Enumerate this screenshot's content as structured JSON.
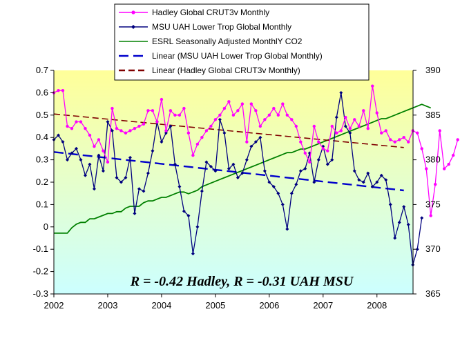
{
  "chart_data": {
    "type": "line",
    "x_axis": {
      "min": 2002,
      "max": 2008.67,
      "ticks": [
        2002,
        2003,
        2004,
        2005,
        2006,
        2007,
        2008
      ]
    },
    "y_left": {
      "min": -0.3,
      "max": 0.7,
      "ticks": [
        0.7,
        0.6,
        0.5,
        0.4,
        0.3,
        0.2,
        0.1,
        0,
        -0.1,
        -0.2,
        -0.3
      ],
      "tick_labels": [
        "0.7",
        "0.6",
        "0.5",
        "0.4",
        "0.3",
        "0.2",
        "0.1",
        "0",
        "-0.1",
        "-0.2",
        "-0.3"
      ]
    },
    "y_right": {
      "min": 365,
      "max": 390,
      "ticks": [
        390,
        385,
        380,
        375,
        370,
        365
      ],
      "tick_labels": [
        "390",
        "385",
        "380",
        "375",
        "370",
        "365"
      ]
    },
    "grid": false,
    "background": {
      "gradient_top": "#ffff99",
      "gradient_bottom": "#ccffff"
    },
    "annotation": "R = -0.42 Hadley,  R = -0.31 UAH MSU",
    "legend_position": "top-center",
    "series": [
      {
        "name": "Hadley Global CRUT3v Monthly",
        "axis": "left",
        "color": "#ff00ff",
        "marker": "circle",
        "style": "solid",
        "x_start": 2002.0,
        "x_step": 0.08333,
        "values": [
          0.6,
          0.61,
          0.61,
          0.45,
          0.44,
          0.47,
          0.47,
          0.44,
          0.41,
          0.36,
          0.39,
          0.34,
          0.29,
          0.53,
          0.44,
          0.43,
          0.42,
          0.43,
          0.44,
          0.45,
          0.46,
          0.52,
          0.52,
          0.47,
          0.57,
          0.43,
          0.52,
          0.5,
          0.5,
          0.53,
          0.42,
          0.32,
          0.37,
          0.4,
          0.43,
          0.45,
          0.48,
          0.5,
          0.53,
          0.56,
          0.5,
          0.52,
          0.55,
          0.38,
          0.55,
          0.52,
          0.45,
          0.48,
          0.5,
          0.53,
          0.5,
          0.55,
          0.5,
          0.48,
          0.45,
          0.38,
          0.33,
          0.29,
          0.45,
          0.38,
          0.35,
          0.34,
          0.45,
          0.42,
          0.43,
          0.49,
          0.44,
          0.48,
          0.45,
          0.52,
          0.44,
          0.63,
          0.51,
          0.42,
          0.43,
          0.39,
          0.38,
          0.39,
          0.4,
          0.38,
          0.43,
          0.42,
          0.35,
          0.26,
          0.05,
          0.19,
          0.43,
          0.26,
          0.28,
          0.32,
          0.39
        ]
      },
      {
        "name": "MSU UAH Lower Trop Global Monthly",
        "axis": "left",
        "color": "#00007f",
        "marker": "diamond",
        "style": "solid",
        "x_start": 2002.0,
        "x_step": 0.08333,
        "values": [
          0.39,
          0.41,
          0.38,
          0.3,
          0.33,
          0.35,
          0.3,
          0.23,
          0.28,
          0.17,
          0.32,
          0.25,
          0.47,
          0.43,
          0.22,
          0.2,
          0.22,
          0.31,
          0.06,
          0.17,
          0.16,
          0.24,
          0.34,
          0.47,
          0.38,
          0.42,
          0.45,
          0.28,
          0.18,
          0.07,
          0.05,
          -0.12,
          0.0,
          0.16,
          0.29,
          0.27,
          0.25,
          0.48,
          0.42,
          0.26,
          0.28,
          0.22,
          0.24,
          0.3,
          0.36,
          0.38,
          0.4,
          0.25,
          0.2,
          0.18,
          0.15,
          0.1,
          -0.01,
          0.15,
          0.19,
          0.25,
          0.26,
          0.33,
          0.2,
          0.3,
          0.36,
          0.28,
          0.3,
          0.49,
          0.6,
          0.45,
          0.42,
          0.25,
          0.21,
          0.2,
          0.24,
          0.18,
          0.2,
          0.23,
          0.21,
          0.1,
          -0.05,
          0.02,
          0.09,
          0.01,
          -0.17,
          -0.1,
          0.04
        ]
      },
      {
        "name": "ESRL Seasonally Adjusted MonthlY CO2",
        "axis": "right",
        "color": "#008000",
        "marker": "none",
        "style": "solid",
        "x_start": 2002.0,
        "x_step": 0.08333,
        "values": [
          371.8,
          371.8,
          371.8,
          371.8,
          372.4,
          372.8,
          373.0,
          373.0,
          373.4,
          373.4,
          373.6,
          373.8,
          374.0,
          374.0,
          374.2,
          374.2,
          374.6,
          374.8,
          374.8,
          374.8,
          375.2,
          375.4,
          375.4,
          375.6,
          375.8,
          375.8,
          376.0,
          376.2,
          376.4,
          376.4,
          376.2,
          376.4,
          376.6,
          377.0,
          377.2,
          377.4,
          377.6,
          377.8,
          378.0,
          378.2,
          378.4,
          378.6,
          378.8,
          379.0,
          379.2,
          379.4,
          379.6,
          379.8,
          380.0,
          380.2,
          380.4,
          380.6,
          380.8,
          380.8,
          381.0,
          381.2,
          381.2,
          381.4,
          381.6,
          381.8,
          382.0,
          382.2,
          382.4,
          382.6,
          382.8,
          383.0,
          383.2,
          383.4,
          383.6,
          383.8,
          384.0,
          384.2,
          384.4,
          384.6,
          384.6,
          384.8,
          385.0,
          385.2,
          385.4,
          385.6,
          385.8,
          386.0,
          386.2,
          386.0,
          385.8
        ]
      },
      {
        "name": "Linear (MSU UAH Lower Trop Global Monthly)",
        "axis": "left",
        "color": "#0000cc",
        "marker": "none",
        "style": "dashed-long",
        "x": [
          2002.0,
          2008.5
        ],
        "values": [
          0.335,
          0.163
        ]
      },
      {
        "name": "Linear (Hadley Global CRUT3v Monthly)",
        "axis": "left",
        "color": "#800000",
        "marker": "none",
        "style": "dashed",
        "x": [
          2002.0,
          2008.5
        ],
        "values": [
          0.505,
          0.355
        ]
      }
    ]
  }
}
